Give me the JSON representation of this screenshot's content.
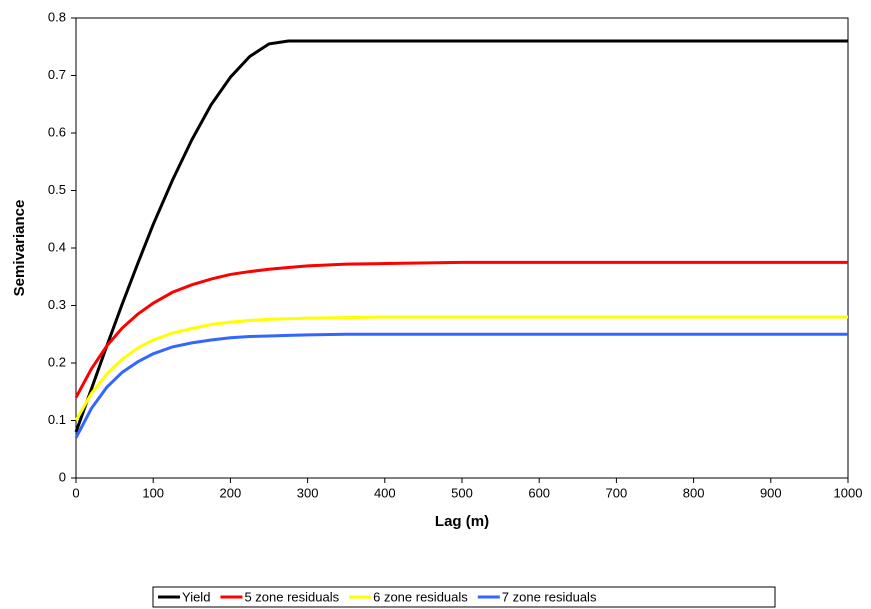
{
  "chart_data": {
    "type": "line",
    "x_label": "Lag (m)",
    "y_label": "Semivariance",
    "x": [
      0,
      20,
      40,
      60,
      80,
      100,
      125,
      150,
      175,
      200,
      225,
      250,
      275,
      300,
      350,
      400,
      500,
      600,
      700,
      800,
      900,
      1000
    ],
    "series": [
      {
        "name": "Yield",
        "color": "#000000",
        "values": [
          0.08,
          0.155,
          0.23,
          0.303,
          0.373,
          0.441,
          0.518,
          0.588,
          0.649,
          0.697,
          0.733,
          0.755,
          0.76,
          0.76,
          0.76,
          0.76,
          0.76,
          0.76,
          0.76,
          0.76,
          0.76,
          0.76
        ]
      },
      {
        "name": "5 zone residuals",
        "color": "#ff0000",
        "values": [
          0.14,
          0.19,
          0.23,
          0.261,
          0.285,
          0.304,
          0.323,
          0.336,
          0.346,
          0.354,
          0.359,
          0.363,
          0.366,
          0.369,
          0.372,
          0.373,
          0.375,
          0.375,
          0.375,
          0.375,
          0.375,
          0.375
        ]
      },
      {
        "name": "6 zone residuals",
        "color": "#ffff00",
        "values": [
          0.1,
          0.147,
          0.181,
          0.207,
          0.226,
          0.24,
          0.252,
          0.26,
          0.267,
          0.271,
          0.274,
          0.276,
          0.277,
          0.278,
          0.279,
          0.28,
          0.28,
          0.28,
          0.28,
          0.28,
          0.28,
          0.28
        ]
      },
      {
        "name": "7 zone residuals",
        "color": "#3366ff",
        "values": [
          0.07,
          0.121,
          0.158,
          0.184,
          0.202,
          0.216,
          0.228,
          0.235,
          0.24,
          0.244,
          0.246,
          0.247,
          0.248,
          0.249,
          0.25,
          0.25,
          0.25,
          0.25,
          0.25,
          0.25,
          0.25,
          0.25
        ]
      }
    ],
    "xlim": [
      0,
      1000
    ],
    "xticks": [
      0,
      100,
      200,
      300,
      400,
      500,
      600,
      700,
      800,
      900,
      1000
    ],
    "ylim": [
      0,
      0.8
    ],
    "yticks": [
      0,
      0.1,
      0.2,
      0.3,
      0.4,
      0.5,
      0.6,
      0.7,
      0.8
    ],
    "grid": false,
    "legend": "bottom"
  }
}
